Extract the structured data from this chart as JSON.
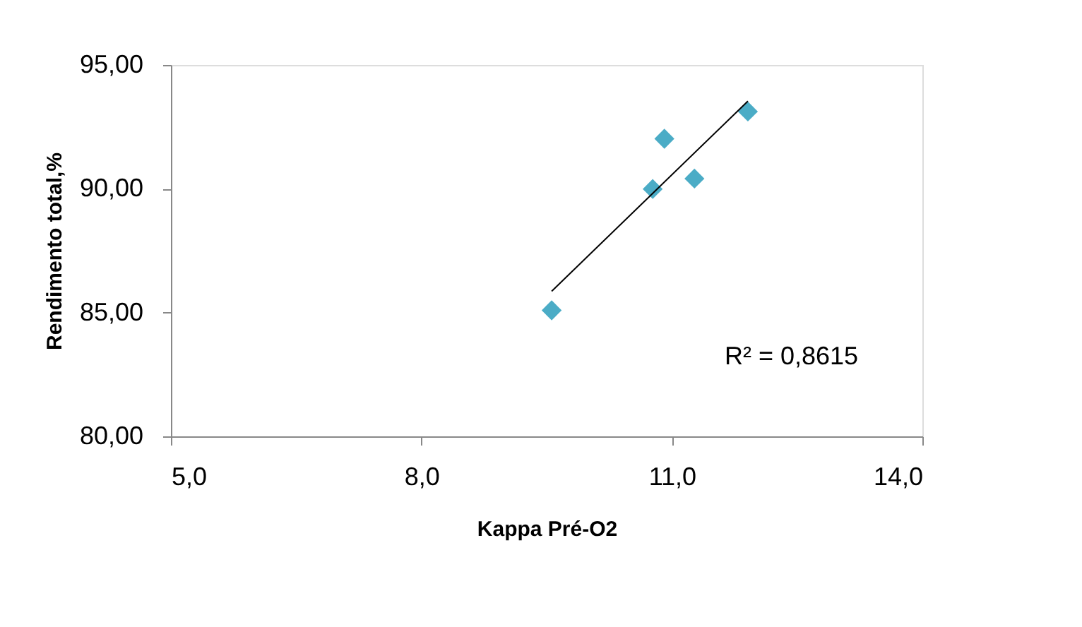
{
  "chart_data": {
    "type": "scatter",
    "xlabel": "Kappa Pré-O2",
    "ylabel": "Rendimento total,%",
    "xlim": [
      5,
      14
    ],
    "ylim": [
      80,
      95
    ],
    "xticks": [
      {
        "value": 5,
        "label": "5,0"
      },
      {
        "value": 8,
        "label": "8,0"
      },
      {
        "value": 11,
        "label": "11,0"
      },
      {
        "value": 14,
        "label": "14,0"
      }
    ],
    "yticks": [
      {
        "value": 80,
        "label": "80,00"
      },
      {
        "value": 85,
        "label": "85,00"
      },
      {
        "value": 90,
        "label": "90,00"
      },
      {
        "value": 95,
        "label": "95,00"
      }
    ],
    "grid": false,
    "marker": "diamond",
    "series": [
      {
        "color": "#4bacc6",
        "x": [
          9.56,
          10.77,
          10.91,
          11.27,
          11.91
        ],
        "values": [
          85.09,
          89.99,
          92.02,
          90.41,
          93.12
        ]
      },
      {
        "type": "line",
        "color": "#000000",
        "line_style": "solid",
        "marker": "none",
        "x": [
          9.56,
          11.91
        ],
        "values": [
          85.86,
          93.54
        ]
      }
    ],
    "annotations": [
      "R² = 0,8615"
    ]
  }
}
